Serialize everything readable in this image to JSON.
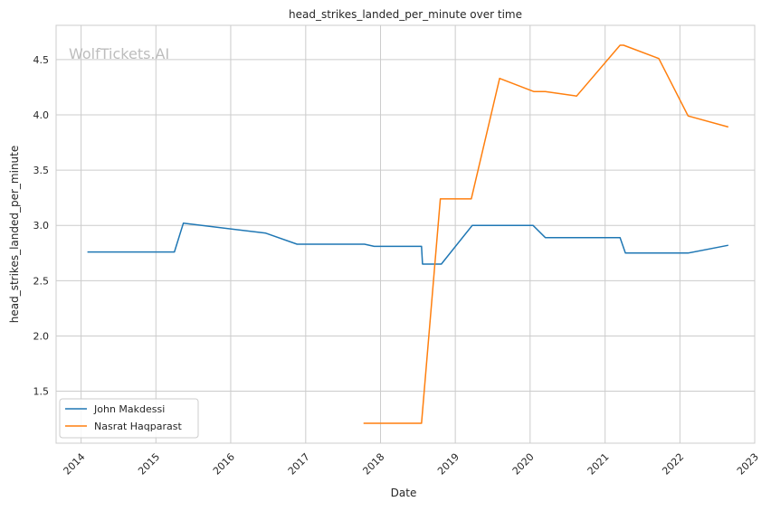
{
  "chart_data": {
    "type": "line",
    "title": "head_strikes_landed_per_minute over time",
    "xlabel": "Date",
    "ylabel": "head_strikes_landed_per_minute",
    "watermark": "WolfTickets.AI",
    "x_range": [
      "2013-09-01",
      "2023-01-01"
    ],
    "ylim": [
      1.03,
      4.81
    ],
    "x_ticks": [
      "2014",
      "2015",
      "2016",
      "2017",
      "2018",
      "2019",
      "2020",
      "2021",
      "2022",
      "2023"
    ],
    "y_ticks": [
      "1.5",
      "2.0",
      "2.5",
      "3.0",
      "3.5",
      "4.0",
      "4.5"
    ],
    "grid": true,
    "legend_position": "lower-left",
    "series": [
      {
        "name": "John Makdessi",
        "color": "#1f77b4",
        "points": [
          {
            "x": "2014-02-01",
            "y": 2.76
          },
          {
            "x": "2015-04-01",
            "y": 2.76
          },
          {
            "x": "2015-05-15",
            "y": 3.02
          },
          {
            "x": "2016-06-20",
            "y": 2.93
          },
          {
            "x": "2016-11-20",
            "y": 2.83
          },
          {
            "x": "2017-10-15",
            "y": 2.83
          },
          {
            "x": "2017-12-01",
            "y": 2.81
          },
          {
            "x": "2018-07-20",
            "y": 2.81
          },
          {
            "x": "2018-07-25",
            "y": 2.65
          },
          {
            "x": "2018-10-25",
            "y": 2.65
          },
          {
            "x": "2019-03-25",
            "y": 3.0
          },
          {
            "x": "2020-01-15",
            "y": 3.0
          },
          {
            "x": "2020-03-15",
            "y": 2.89
          },
          {
            "x": "2021-03-15",
            "y": 2.89
          },
          {
            "x": "2021-04-10",
            "y": 2.75
          },
          {
            "x": "2022-02-10",
            "y": 2.75
          },
          {
            "x": "2022-08-25",
            "y": 2.82
          }
        ]
      },
      {
        "name": "Nasrat Haqparast",
        "color": "#ff7f0e",
        "points": [
          {
            "x": "2017-10-10",
            "y": 1.21
          },
          {
            "x": "2018-07-20",
            "y": 1.21
          },
          {
            "x": "2018-10-20",
            "y": 3.24
          },
          {
            "x": "2019-03-20",
            "y": 3.24
          },
          {
            "x": "2019-08-05",
            "y": 4.33
          },
          {
            "x": "2020-01-20",
            "y": 4.21
          },
          {
            "x": "2020-03-15",
            "y": 4.21
          },
          {
            "x": "2020-08-15",
            "y": 4.17
          },
          {
            "x": "2021-03-15",
            "y": 4.63
          },
          {
            "x": "2021-04-01",
            "y": 4.63
          },
          {
            "x": "2021-09-20",
            "y": 4.51
          },
          {
            "x": "2022-02-10",
            "y": 3.99
          },
          {
            "x": "2022-08-25",
            "y": 3.89
          }
        ]
      }
    ]
  }
}
